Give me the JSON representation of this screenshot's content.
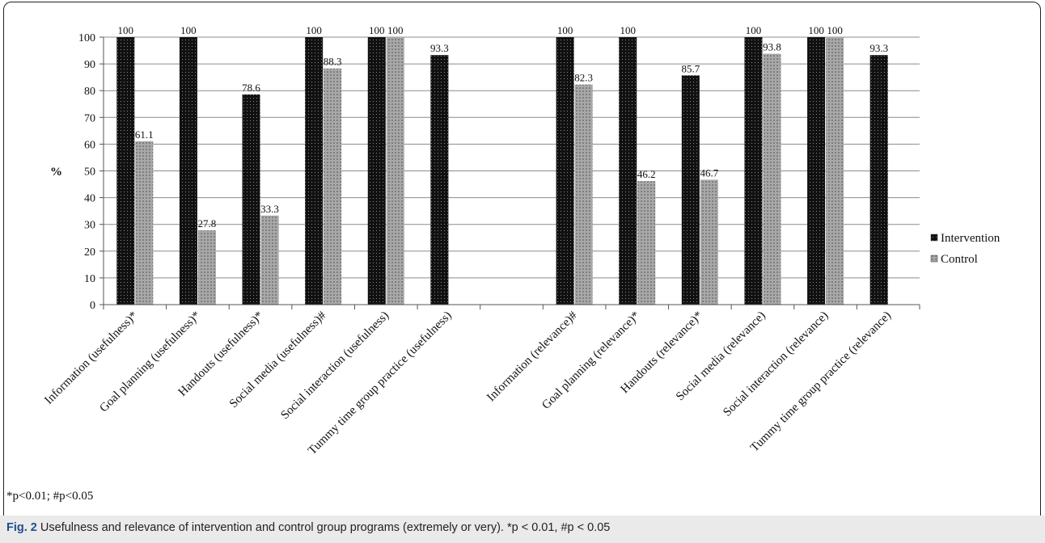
{
  "chart_data": {
    "type": "bar",
    "ylabel": "%",
    "ylim": [
      0,
      100
    ],
    "yticks": [
      0,
      10,
      20,
      30,
      40,
      50,
      60,
      70,
      80,
      90,
      100
    ],
    "grid": true,
    "legend_position": "right",
    "categories": [
      "Information (usefulness)*",
      "Goal planning (usefulness)*",
      "Handouts (usefulness)*",
      "Social media (usefulness)#",
      "Social interaction (usefulness)",
      "Tummy time group practice (usefulness)",
      "",
      "Information (relevance)#",
      "Goal planning (relevance)*",
      "Handouts (relevance)*",
      "Social media (relevance)",
      "Social interaction (relevance)",
      "Tummy time group practice (relevance)"
    ],
    "series": [
      {
        "name": "Intervention",
        "color": "#111111",
        "values": [
          100,
          100,
          78.6,
          100,
          100,
          93.3,
          null,
          100,
          100,
          85.7,
          100,
          100,
          93.3
        ],
        "labels": [
          "100",
          "100",
          "78.6",
          "100",
          "100",
          "93.3",
          "",
          "100",
          "100",
          "85.7",
          "100",
          "100",
          "93.3"
        ]
      },
      {
        "name": "Control",
        "color": "#9a9a9a",
        "values": [
          61.1,
          27.8,
          33.3,
          88.3,
          100,
          null,
          null,
          82.3,
          46.2,
          46.7,
          93.8,
          100,
          null
        ],
        "labels": [
          "61.1",
          "27.8",
          "33.3",
          "88.3",
          "100",
          "",
          "",
          "82.3",
          "46.2",
          "46.7",
          "93.8",
          "100",
          ""
        ]
      }
    ]
  },
  "footnote": "*p<0.01; #p<0.05",
  "caption": {
    "fig_label": "Fig. 2",
    "text": " Usefulness and relevance of intervention and control group programs (extremely or very). *p < 0.01, #p < 0.05"
  }
}
